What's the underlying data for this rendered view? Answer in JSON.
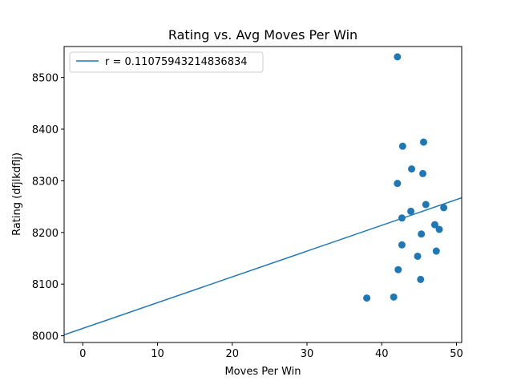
{
  "chart_data": {
    "type": "scatter",
    "title": "Rating vs. Avg Moves Per Win",
    "xlabel": "Moves Per Win",
    "ylabel": "Rating (dfjlkdflj)",
    "xlim": [
      -2.5,
      50.7
    ],
    "ylim": [
      7987,
      8560
    ],
    "xticks": [
      0,
      10,
      20,
      30,
      40,
      50
    ],
    "yticks": [
      8000,
      8100,
      8200,
      8300,
      8400,
      8500
    ],
    "grid": false,
    "legend_position": "upper-left",
    "colors": {
      "series": "#1f77b4"
    },
    "series": [
      {
        "kind": "points",
        "points": [
          {
            "x": 42.1,
            "y": 8540
          },
          {
            "x": 45.6,
            "y": 8375
          },
          {
            "x": 42.8,
            "y": 8367
          },
          {
            "x": 44.0,
            "y": 8323
          },
          {
            "x": 45.5,
            "y": 8314
          },
          {
            "x": 42.1,
            "y": 8295
          },
          {
            "x": 45.9,
            "y": 8254
          },
          {
            "x": 48.3,
            "y": 8248
          },
          {
            "x": 43.9,
            "y": 8241
          },
          {
            "x": 42.7,
            "y": 8228
          },
          {
            "x": 47.1,
            "y": 8215
          },
          {
            "x": 47.7,
            "y": 8206
          },
          {
            "x": 45.3,
            "y": 8197
          },
          {
            "x": 42.7,
            "y": 8176
          },
          {
            "x": 47.3,
            "y": 8164
          },
          {
            "x": 44.8,
            "y": 8154
          },
          {
            "x": 42.2,
            "y": 8128
          },
          {
            "x": 45.2,
            "y": 8109
          },
          {
            "x": 41.6,
            "y": 8075
          },
          {
            "x": 38.0,
            "y": 8073
          }
        ]
      },
      {
        "name": "r = 0.11075943214836834",
        "kind": "line",
        "points": [
          {
            "x": -2.5,
            "y": 8001.8
          },
          {
            "x": 50.7,
            "y": 8267.2
          }
        ]
      }
    ]
  }
}
